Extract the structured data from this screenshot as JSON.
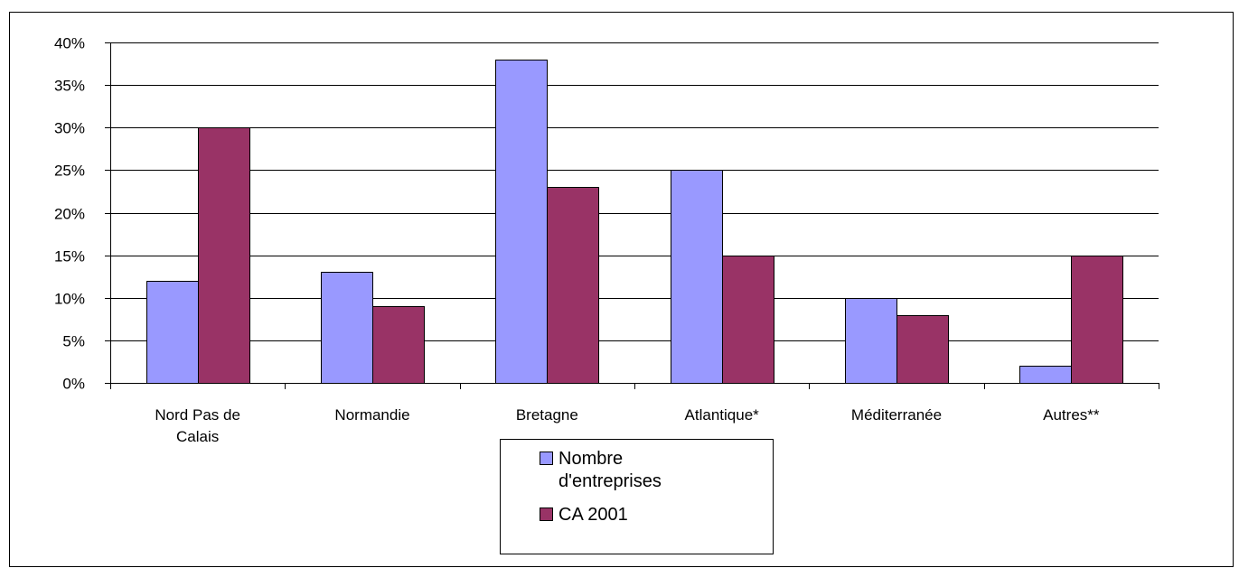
{
  "chart_data": {
    "type": "bar",
    "categories": [
      [
        "Nord Pas de",
        "Calais"
      ],
      [
        "Normandie"
      ],
      [
        "Bretagne"
      ],
      [
        "Atlantique*"
      ],
      [
        "Méditerranée"
      ],
      [
        "Autres**"
      ]
    ],
    "series": [
      {
        "name": [
          "Nombre",
          "d'entreprises"
        ],
        "values": [
          12,
          13,
          38,
          25,
          10,
          2
        ],
        "color": "#9999ff"
      },
      {
        "name": [
          "CA 2001"
        ],
        "values": [
          30,
          9,
          23,
          15,
          8,
          15
        ],
        "color": "#993366"
      }
    ],
    "ylim": [
      0,
      40
    ],
    "yticks": [
      0,
      5,
      10,
      15,
      20,
      25,
      30,
      35,
      40
    ],
    "tick_suffix": "%",
    "grid": true,
    "legend_position": "bottom-center"
  }
}
